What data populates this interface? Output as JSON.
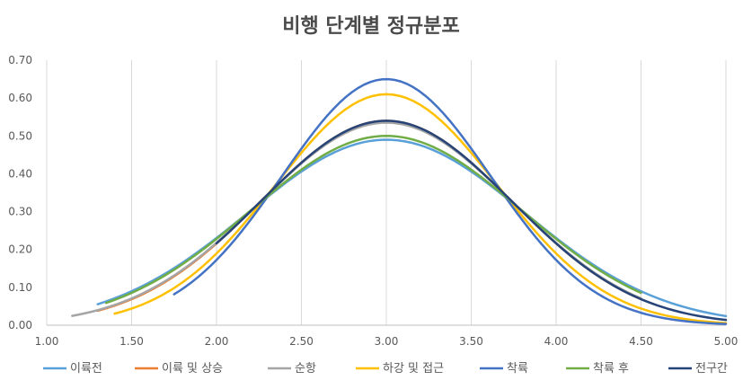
{
  "chart_data": {
    "type": "line",
    "title": "비행 단계별 정규분포",
    "xlabel": "",
    "ylabel": "",
    "xlim": [
      1.0,
      5.0
    ],
    "ylim": [
      0.0,
      0.7
    ],
    "x_ticks": [
      "1.00",
      "1.50",
      "2.00",
      "2.50",
      "3.00",
      "3.50",
      "4.00",
      "4.50",
      "5.00"
    ],
    "y_ticks": [
      "0.00",
      "0.10",
      "0.20",
      "0.30",
      "0.40",
      "0.50",
      "0.60",
      "0.70"
    ],
    "grid": "vertical",
    "legend_position": "bottom",
    "series": [
      {
        "name": "이륙전",
        "color": "#5aa0d8",
        "mean": 3.0,
        "peak": 0.49,
        "xmin": 1.3,
        "xmax": 5.0,
        "points": [
          [
            1.3,
            0.048
          ],
          [
            1.5,
            0.085
          ],
          [
            2.0,
            0.218
          ],
          [
            2.5,
            0.411
          ],
          [
            3.0,
            0.49
          ],
          [
            3.5,
            0.411
          ],
          [
            4.0,
            0.218
          ],
          [
            4.5,
            0.085
          ],
          [
            5.0,
            0.022
          ]
        ]
      },
      {
        "name": "이륙 및 상승",
        "color": "#ed7d31",
        "mean": 3.0,
        "peak": 0.54,
        "xmin": 1.3,
        "xmax": 4.5,
        "points": [
          [
            1.3,
            0.04
          ],
          [
            1.5,
            0.068
          ],
          [
            2.0,
            0.215
          ],
          [
            2.5,
            0.443
          ],
          [
            3.0,
            0.54
          ],
          [
            3.5,
            0.443
          ],
          [
            4.0,
            0.215
          ],
          [
            4.5,
            0.068
          ]
        ]
      },
      {
        "name": "순항",
        "color": "#a5a5a5",
        "mean": 3.0,
        "peak": 0.535,
        "xmin": 1.15,
        "xmax": 4.5,
        "points": [
          [
            1.15,
            0.022
          ],
          [
            1.5,
            0.068
          ],
          [
            2.0,
            0.215
          ],
          [
            2.5,
            0.44
          ],
          [
            3.0,
            0.535
          ],
          [
            3.5,
            0.44
          ],
          [
            4.0,
            0.215
          ],
          [
            4.5,
            0.068
          ]
        ]
      },
      {
        "name": "하강 및 접근",
        "color": "#ffc000",
        "mean": 3.0,
        "peak": 0.61,
        "xmin": 1.4,
        "xmax": 5.0,
        "points": [
          [
            1.4,
            0.028
          ],
          [
            1.5,
            0.041
          ],
          [
            2.0,
            0.2
          ],
          [
            2.5,
            0.475
          ],
          [
            3.0,
            0.61
          ],
          [
            3.5,
            0.475
          ],
          [
            4.0,
            0.2
          ],
          [
            4.5,
            0.041
          ],
          [
            5.0,
            0.004
          ]
        ]
      },
      {
        "name": "착륙",
        "color": "#4472c4",
        "mean": 3.0,
        "peak": 0.65,
        "xmin": 1.75,
        "xmax": 5.0,
        "points": [
          [
            1.75,
            0.08
          ],
          [
            2.0,
            0.19
          ],
          [
            2.5,
            0.49
          ],
          [
            3.0,
            0.65
          ],
          [
            3.5,
            0.49
          ],
          [
            4.0,
            0.19
          ],
          [
            4.5,
            0.037
          ],
          [
            5.0,
            0.004
          ]
        ]
      },
      {
        "name": "착륙 후",
        "color": "#70ad47",
        "mean": 3.0,
        "peak": 0.5,
        "xmin": 1.35,
        "xmax": 4.5,
        "points": [
          [
            1.35,
            0.058
          ],
          [
            1.5,
            0.085
          ],
          [
            2.0,
            0.22
          ],
          [
            2.5,
            0.415
          ],
          [
            3.0,
            0.5
          ],
          [
            3.5,
            0.415
          ],
          [
            4.0,
            0.22
          ],
          [
            4.5,
            0.085
          ]
        ]
      },
      {
        "name": "전구간",
        "color": "#264478",
        "mean": 3.0,
        "peak": 0.54,
        "xmin": 2.0,
        "xmax": 5.0,
        "points": [
          [
            2.0,
            0.215
          ],
          [
            2.5,
            0.443
          ],
          [
            3.0,
            0.54
          ],
          [
            3.5,
            0.443
          ],
          [
            4.0,
            0.215
          ],
          [
            4.5,
            0.068
          ],
          [
            5.0,
            0.013
          ]
        ]
      }
    ]
  }
}
